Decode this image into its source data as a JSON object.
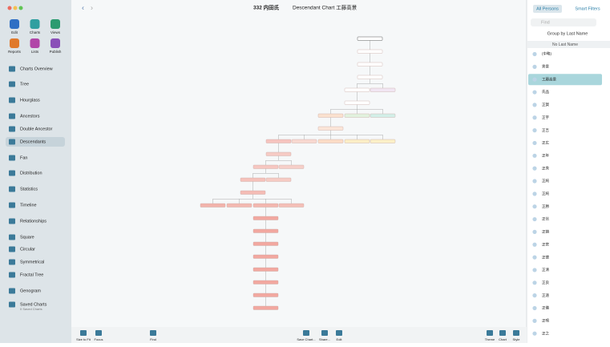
{
  "sidebar": {
    "tools": [
      "Edit",
      "Charts",
      "Views",
      "Reports",
      "Lists",
      "Publish"
    ],
    "nav": [
      "Charts Overview",
      "Tree",
      "Hourglass",
      "Ancestors",
      "Double Ancestor",
      "Descendants",
      "Fan",
      "Distribution",
      "Statistics",
      "Timeline",
      "Relationships",
      "Square",
      "Circular",
      "Symmetrical",
      "Fractal Tree",
      "Genogram",
      "Saved Charts"
    ],
    "saved_subtitle": "0 Saved Charts"
  },
  "header": {
    "tree_name": "332 内田氏",
    "chart_title": "Descendant Chart 工藤高景"
  },
  "right_panel": {
    "tabs": [
      "All Persons",
      "Smart Filters"
    ],
    "search": "Find",
    "group_by": "Group by Last Name",
    "section": "No Last Name",
    "persons": [
      "(中略)",
      "秀景",
      "工藤高景",
      "氏品",
      "正賀",
      "正宇",
      "正吉",
      "正広",
      "正年",
      "正秀",
      "正純",
      "正純",
      "正勝",
      "正信",
      "正鎮",
      "正官",
      "正徳",
      "正清",
      "正良",
      "正遠",
      "正儀",
      "正鳴",
      "正之"
    ]
  },
  "bottom_toolbar": {
    "left": [
      "Size to Fit",
      "Focus",
      "Find"
    ],
    "middle": [
      "Save Chart...",
      "Share...",
      "Edit"
    ],
    "right": [
      "Theme",
      "Chart",
      "Style"
    ]
  }
}
